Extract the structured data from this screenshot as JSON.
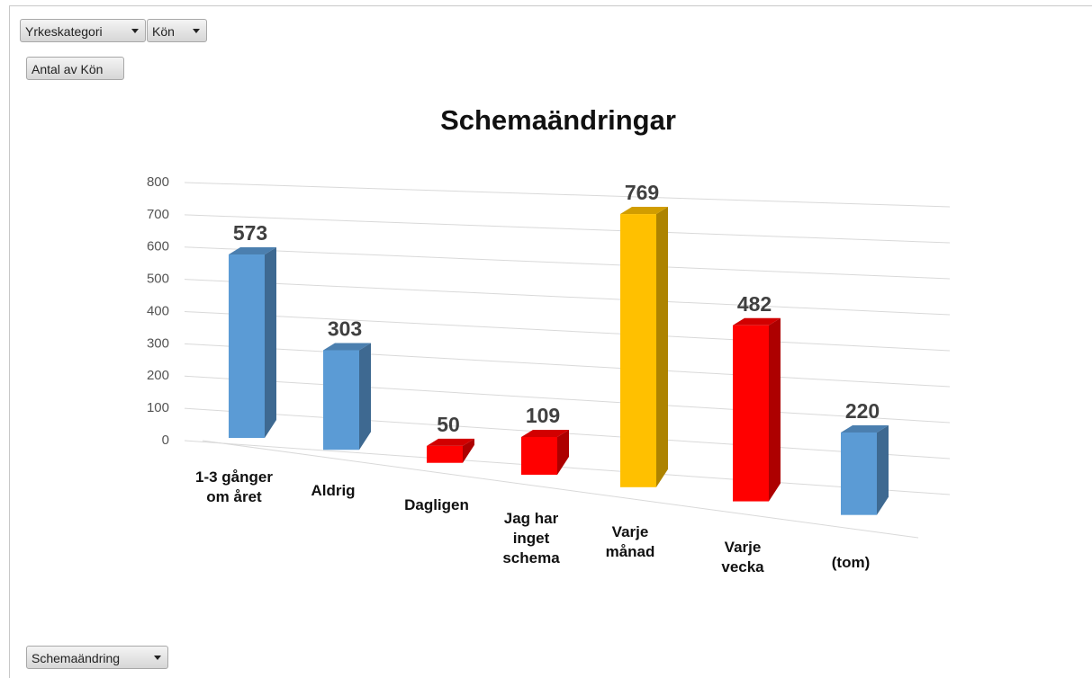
{
  "ui": {
    "filter_1": "Yrkeskategori",
    "filter_2": "Kön",
    "value_field": "Antal av Kön",
    "axis_field": "Schemaändring"
  },
  "chart_data": {
    "type": "bar",
    "title": "Schemaändringar",
    "categories": [
      "1-3 gånger om året",
      "Aldrig",
      "Dagligen",
      "Jag har inget schema",
      "Varje månad",
      "Varje vecka",
      "(tom)"
    ],
    "values": [
      573,
      303,
      50,
      109,
      769,
      482,
      220
    ],
    "colors": [
      "#5b9bd5",
      "#5b9bd5",
      "#ff0000",
      "#ff0000",
      "#ffc000",
      "#ff0000",
      "#5b9bd5"
    ],
    "ylim": [
      0,
      800
    ],
    "yticks": [
      0,
      100,
      200,
      300,
      400,
      500,
      600,
      700,
      800
    ],
    "grid": true
  }
}
